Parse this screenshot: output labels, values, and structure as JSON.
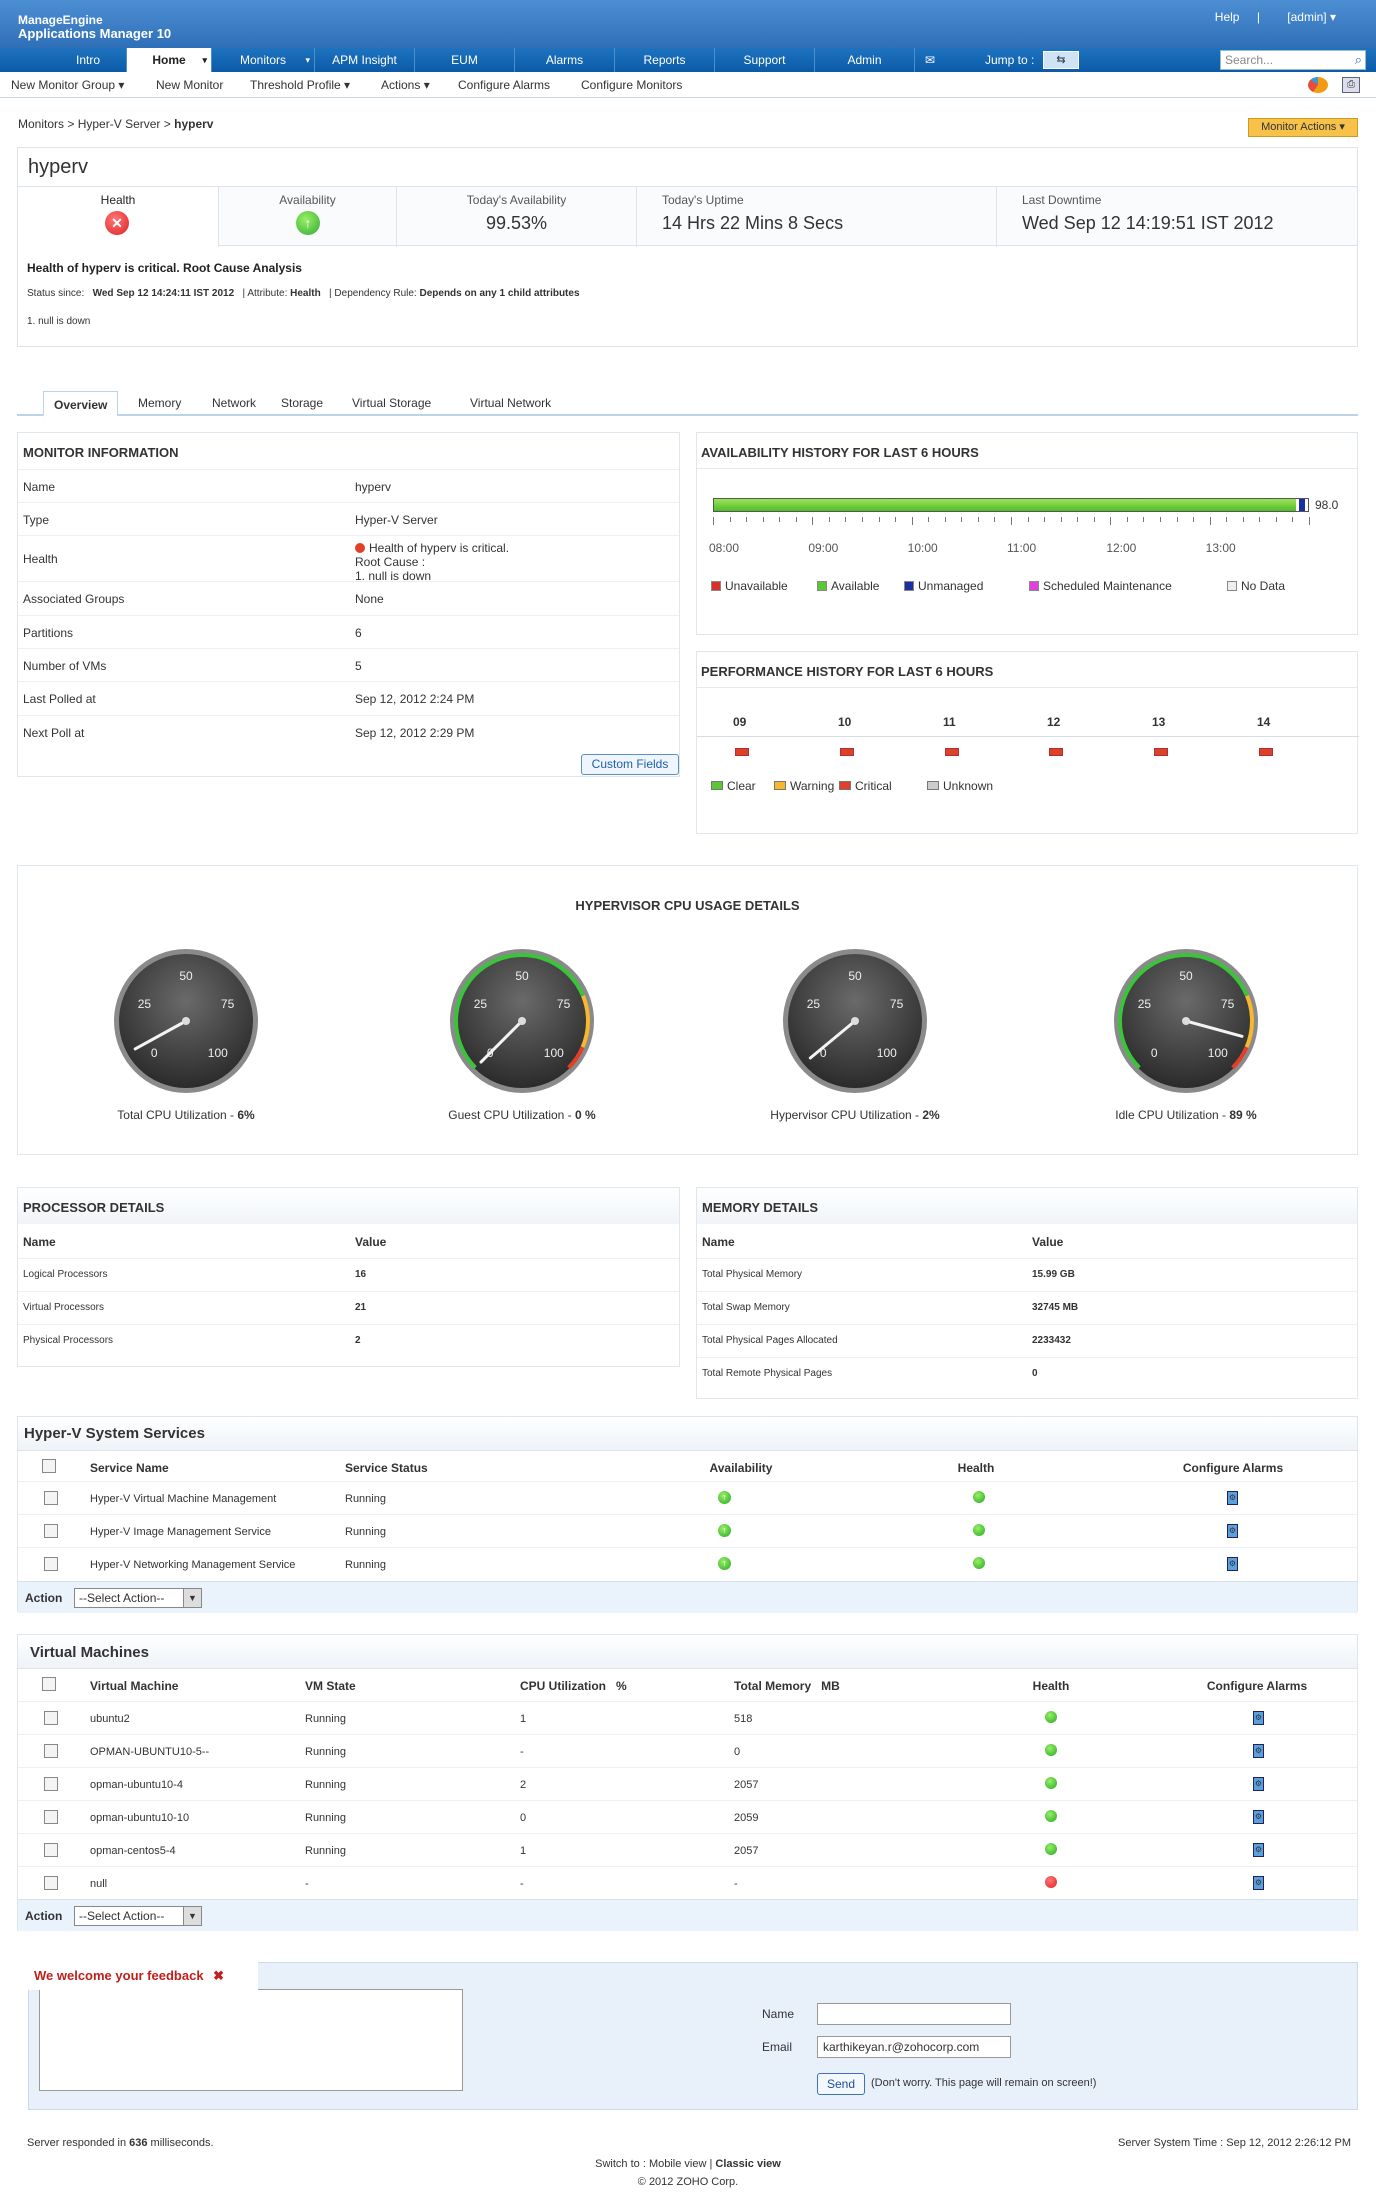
{
  "app": {
    "brand_line1": "ManageEngine",
    "brand_line2": "Applications Manager 10",
    "help": "Help",
    "user": "[admin]"
  },
  "nav": {
    "items": [
      "Intro",
      "Home",
      "Monitors",
      "APM Insight",
      "EUM",
      "Alarms",
      "Reports",
      "Support",
      "Admin"
    ],
    "jump": "Jump to :",
    "search_placeholder": "Search..."
  },
  "subnav": [
    "New Monitor Group",
    "New Monitor",
    "Threshold Profile",
    "Actions",
    "Configure Alarms",
    "Configure Monitors"
  ],
  "breadcrumb": {
    "a": "Monitors",
    "b": "Hyper-V Server",
    "c": "hyperv",
    "sep": ">"
  },
  "monitor_actions": "Monitor Actions",
  "summary": {
    "title": "hyperv",
    "health_label": "Health",
    "availability_label": "Availability",
    "today_avail_label": "Today's Availability",
    "today_avail": "99.53%",
    "uptime_label": "Today's Uptime",
    "uptime": "14 Hrs 22 Mins 8 Secs",
    "downtime_label": "Last Downtime",
    "downtime": "Wed Sep 12 14:19:51 IST 2012",
    "rca_title": "Health of hyperv is critical. Root Cause Analysis",
    "status_since_label": "Status since:",
    "status_since": "Wed Sep 12 14:24:11 IST 2012",
    "attribute_label": "| Attribute:",
    "attribute": "Health",
    "dep_label": "| Dependency Rule:",
    "dep": "Depends on any 1 child attributes",
    "note": "1. null is down"
  },
  "tabs": [
    "Overview",
    "Memory",
    "Network",
    "Storage",
    "Virtual Storage",
    "Virtual Network"
  ],
  "monitor_info": {
    "title": "MONITOR INFORMATION",
    "rows": [
      {
        "k": "Name",
        "v": "hyperv"
      },
      {
        "k": "Type",
        "v": "Hyper-V Server"
      },
      {
        "k": "Health",
        "v": "Health of hyperv is critical.",
        "v2": "Root Cause :",
        "v3": "1. null is down"
      },
      {
        "k": "Associated Groups",
        "v": "None"
      },
      {
        "k": "Partitions",
        "v": "6"
      },
      {
        "k": "Number of VMs",
        "v": "5"
      },
      {
        "k": "Last Polled at",
        "v": "Sep 12, 2012 2:24 PM"
      },
      {
        "k": "Next Poll at",
        "v": "Sep 12, 2012 2:29 PM"
      }
    ],
    "custom_fields": "Custom Fields"
  },
  "availability": {
    "title": "AVAILABILITY HISTORY FOR LAST 6 HOURS",
    "value_label": "98.0",
    "available_fraction": 0.98,
    "ticks": [
      "08:00",
      "09:00",
      "10:00",
      "11:00",
      "12:00",
      "13:00"
    ],
    "legend": [
      "Unavailable",
      "Available",
      "Unmanaged",
      "Scheduled Maintenance",
      "No Data"
    ]
  },
  "performance": {
    "title": "PERFORMANCE HISTORY FOR LAST 6 HOURS",
    "hours": [
      "09",
      "10",
      "11",
      "12",
      "13",
      "14"
    ],
    "legend": [
      "Clear",
      "Warning",
      "Critical",
      "Unknown"
    ]
  },
  "cpu": {
    "title": "HYPERVISOR CPU USAGE DETAILS",
    "gauges": [
      {
        "label": "Total CPU Utilization - ",
        "value": "6%",
        "pct": 6
      },
      {
        "label": "Guest CPU Utilization - ",
        "value": "0 %",
        "pct": 0
      },
      {
        "label": "Hypervisor CPU Utilization - ",
        "value": "2%",
        "pct": 2
      },
      {
        "label": "Idle CPU Utilization - ",
        "value": "89 %",
        "pct": 89
      }
    ],
    "ticks": [
      "0",
      "25",
      "50",
      "75",
      "100"
    ]
  },
  "processor": {
    "title": "PROCESSOR DETAILS",
    "head": [
      "Name",
      "Value"
    ],
    "rows": [
      [
        "Logical Processors",
        "16"
      ],
      [
        "Virtual Processors",
        "21"
      ],
      [
        "Physical Processors",
        "2"
      ]
    ]
  },
  "memory": {
    "title": "MEMORY DETAILS",
    "head": [
      "Name",
      "Value"
    ],
    "rows": [
      [
        "Total Physical Memory",
        "15.99 GB"
      ],
      [
        "Total Swap Memory",
        "32745 MB"
      ],
      [
        "Total Physical Pages Allocated",
        "2233432"
      ],
      [
        "Total Remote Physical Pages",
        "0"
      ]
    ]
  },
  "services": {
    "title": "Hyper-V System Services",
    "head": [
      "Service Name",
      "Service Status",
      "Availability",
      "Health",
      "Configure Alarms"
    ],
    "rows": [
      [
        "Hyper-V Virtual Machine Management",
        "Running"
      ],
      [
        "Hyper-V Image Management Service",
        "Running"
      ],
      [
        "Hyper-V Networking Management Service",
        "Running"
      ]
    ],
    "action_label": "Action",
    "select": "--Select Action--"
  },
  "vms": {
    "title": "Virtual Machines",
    "head": [
      "Virtual Machine",
      "VM State",
      "CPU Utilization   %",
      "Total Memory   MB",
      "Health",
      "Configure Alarms"
    ],
    "rows": [
      [
        "ubuntu2",
        "Running",
        "1",
        "518",
        "ok"
      ],
      [
        "OPMAN-UBUNTU10-5--",
        "Running",
        "-",
        "0",
        "ok"
      ],
      [
        "opman-ubuntu10-4",
        "Running",
        "2",
        "2057",
        "ok"
      ],
      [
        "opman-ubuntu10-10",
        "Running",
        "0",
        "2059",
        "ok"
      ],
      [
        "opman-centos5-4",
        "Running",
        "1",
        "2057",
        "ok"
      ],
      [
        "null",
        "-",
        "-",
        "-",
        "critical"
      ]
    ],
    "action_label": "Action",
    "select": "--Select Action--"
  },
  "feedback": {
    "title": "We welcome your feedback",
    "name_label": "Name",
    "email_label": "Email",
    "email_value": "karthikeyan.r@zohocorp.com",
    "send": "Send",
    "note": "(Don't worry. This page will remain on screen!)"
  },
  "footer": {
    "responded_pre": "Server responded in ",
    "responded_ms": "636",
    "responded_post": " milliseconds.",
    "server_time": "Server System Time : Sep 12, 2012 2:26:12 PM",
    "switch": "Switch to : Mobile view | ",
    "classic": "Classic view",
    "copyright": "© 2012 ZOHO Corp."
  },
  "colors": {
    "accent": "#2f6fb8",
    "ok": "#3cb53c",
    "critical": "#e0402a",
    "warning": "#f5b82e"
  }
}
